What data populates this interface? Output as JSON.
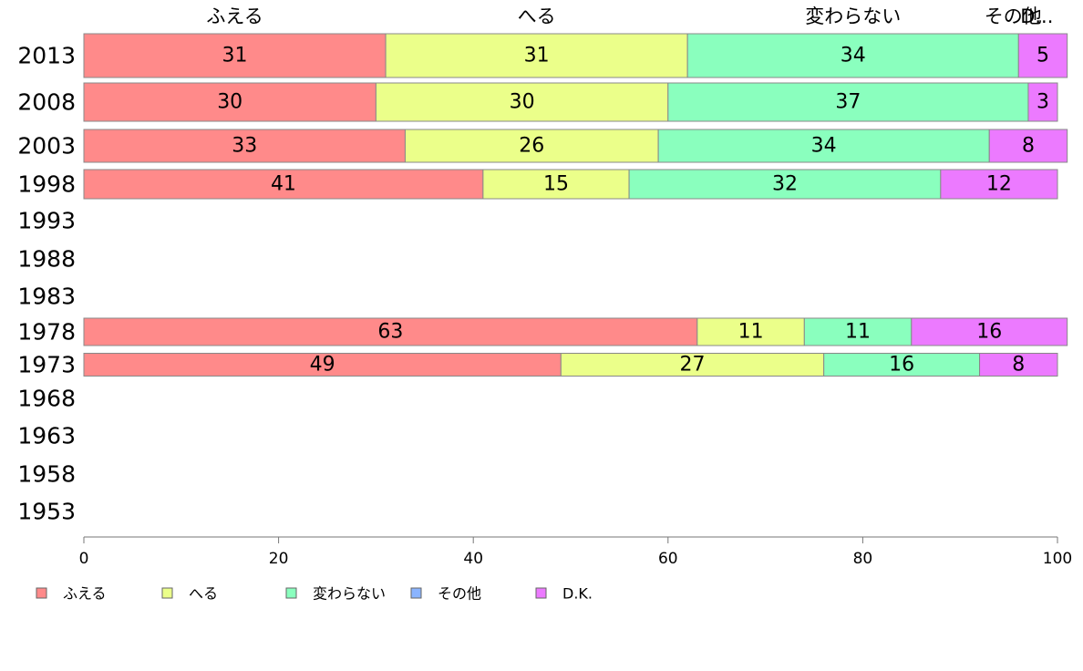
{
  "chart_data": {
    "type": "bar",
    "orientation": "horizontal",
    "stacked": true,
    "categories": [
      "2013",
      "2008",
      "2003",
      "1998",
      "1993",
      "1988",
      "1983",
      "1978",
      "1973",
      "1968",
      "1963",
      "1958",
      "1953"
    ],
    "series": [
      {
        "name": "ふえる",
        "color": "#ff8a8a",
        "values": [
          31,
          30,
          33,
          41,
          null,
          null,
          null,
          63,
          49,
          null,
          null,
          null,
          null
        ]
      },
      {
        "name": "へる",
        "color": "#ebff8a",
        "values": [
          31,
          30,
          26,
          15,
          null,
          null,
          null,
          11,
          27,
          null,
          null,
          null,
          null
        ]
      },
      {
        "name": "変わらない",
        "color": "#8affbe",
        "values": [
          34,
          37,
          34,
          32,
          null,
          null,
          null,
          11,
          16,
          null,
          null,
          null,
          null
        ]
      },
      {
        "name": "その他",
        "color": "#8ab4ff",
        "values": [
          0,
          0,
          0,
          0,
          null,
          null,
          null,
          0,
          0,
          null,
          null,
          null,
          null
        ]
      },
      {
        "name": "D.K.",
        "color": "#ec7aff",
        "values": [
          5,
          3,
          8,
          12,
          null,
          null,
          null,
          16,
          8,
          null,
          null,
          null,
          null
        ]
      }
    ],
    "top_labels": [
      "ふえる",
      "へる",
      "変わらない",
      "その他",
      "D.K."
    ],
    "xlim": [
      0,
      100
    ],
    "xticks": [
      0,
      20,
      40,
      60,
      80,
      100
    ],
    "legend_position": "bottom",
    "grid": false,
    "title": "",
    "xlabel": "",
    "ylabel": ""
  }
}
